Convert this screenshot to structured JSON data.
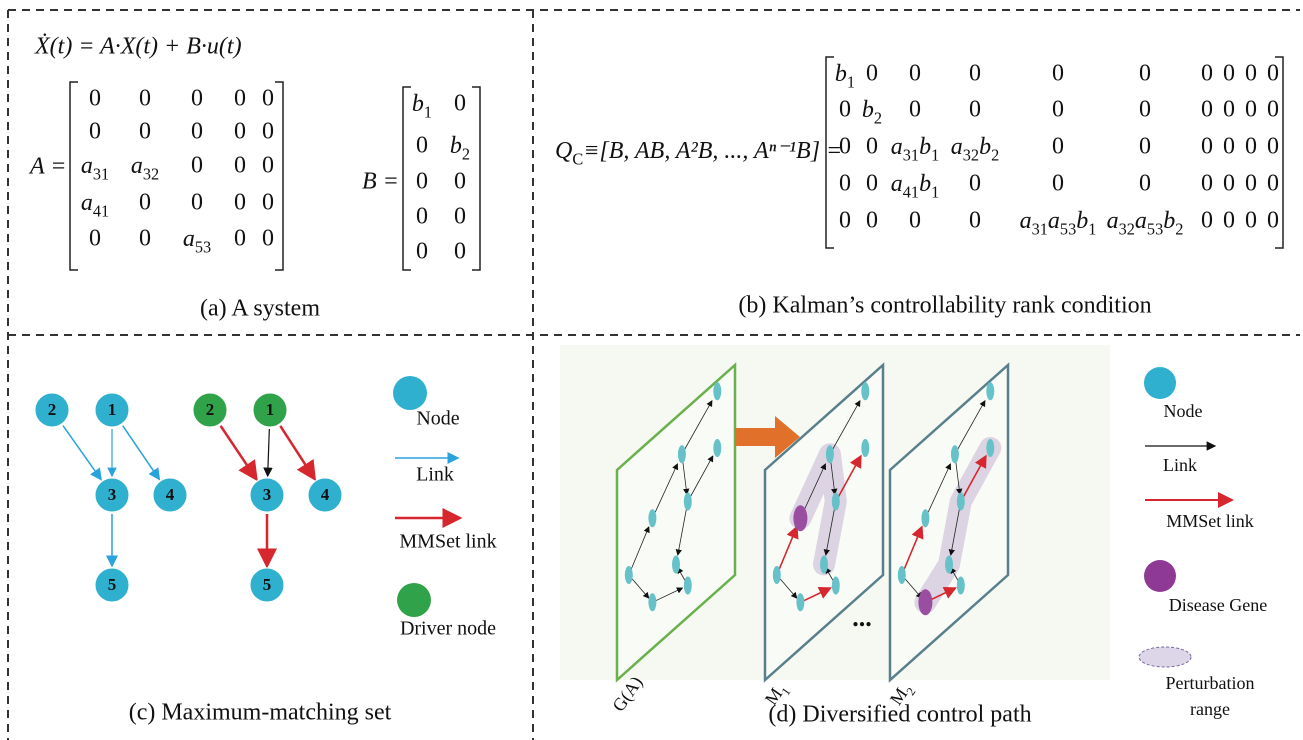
{
  "panel_a": {
    "equation": "Ẋ(t) = A·X(t) + B·u(t)",
    "matrix_a_label": "A =",
    "matrix_a": [
      [
        "0",
        "0",
        "0",
        "0",
        "0"
      ],
      [
        "0",
        "0",
        "0",
        "0",
        "0"
      ],
      [
        [
          {
            "t": "a",
            "sub": "31"
          }
        ],
        [
          {
            "t": "a",
            "sub": "32"
          }
        ],
        "0",
        "0",
        "0"
      ],
      [
        [
          {
            "t": "a",
            "sub": "41"
          }
        ],
        "0",
        "0",
        "0",
        "0"
      ],
      [
        "0",
        "0",
        [
          {
            "t": "a",
            "sub": "53"
          }
        ],
        "0",
        "0"
      ]
    ],
    "matrix_b_label": "B =",
    "matrix_b": [
      [
        [
          {
            "t": "b",
            "sub": "1"
          }
        ],
        "0"
      ],
      [
        "0",
        [
          {
            "t": "b",
            "sub": "2"
          }
        ]
      ],
      [
        "0",
        "0"
      ],
      [
        "0",
        "0"
      ],
      [
        "0",
        "0"
      ]
    ],
    "caption": "(a) A  system"
  },
  "panel_b": {
    "lhs": {
      "t": "Q",
      "sub": "C"
    },
    "rhs": "≡[B, AB, A²B, ..., Aⁿ⁻¹B] =",
    "matrix": [
      [
        [
          {
            "t": "b",
            "sub": "1"
          }
        ],
        "0",
        "0",
        "0",
        "0",
        "0",
        "0",
        "0",
        "0",
        "0"
      ],
      [
        "0",
        [
          {
            "t": "b",
            "sub": "2"
          }
        ],
        "0",
        "0",
        "0",
        "0",
        "0",
        "0",
        "0",
        "0"
      ],
      [
        "0",
        "0",
        [
          {
            "t": "a",
            "sub": "31"
          },
          {
            "t": "b",
            "sub": "1"
          }
        ],
        [
          {
            "t": "a",
            "sub": "32"
          },
          {
            "t": "b",
            "sub": "2"
          }
        ],
        "0",
        "0",
        "0",
        "0",
        "0",
        "0"
      ],
      [
        "0",
        "0",
        [
          {
            "t": "a",
            "sub": "41"
          },
          {
            "t": "b",
            "sub": "1"
          }
        ],
        "0",
        "0",
        "0",
        "0",
        "0",
        "0",
        "0"
      ],
      [
        "0",
        "0",
        "0",
        "0",
        [
          {
            "t": "a",
            "sub": "31"
          },
          {
            "t": "a",
            "sub": "53"
          },
          {
            "t": "b",
            "sub": "1"
          }
        ],
        [
          {
            "t": "a",
            "sub": "32"
          },
          {
            "t": "a",
            "sub": "53"
          },
          {
            "t": "b",
            "sub": "2"
          }
        ],
        "0",
        "0",
        "0",
        "0"
      ]
    ],
    "caption": "(b) Kalman’s controllability rank condition"
  },
  "panel_c": {
    "graphs": [
      {
        "nodes": [
          "2",
          "1",
          "3",
          "4",
          "5"
        ]
      },
      {
        "nodes": [
          "2",
          "1",
          "3",
          "4",
          "5"
        ]
      }
    ],
    "legend": [
      "Node",
      "Link",
      "MMSet link",
      "Driver node"
    ],
    "caption": "(c) Maximum-matching set"
  },
  "panel_d": {
    "plane_labels": [
      [
        {
          "t": "G(A)"
        }
      ],
      [
        {
          "t": "M",
          "sub": "1"
        }
      ],
      [
        {
          "t": "M",
          "sub": "2"
        }
      ]
    ],
    "ellipsis": "...",
    "legend": [
      "Node",
      "Link",
      "MMSet link",
      "Disease Gene"
    ],
    "perturbation_label": [
      "Perturbation",
      "range"
    ],
    "caption": "(d) Diversified control path"
  }
}
